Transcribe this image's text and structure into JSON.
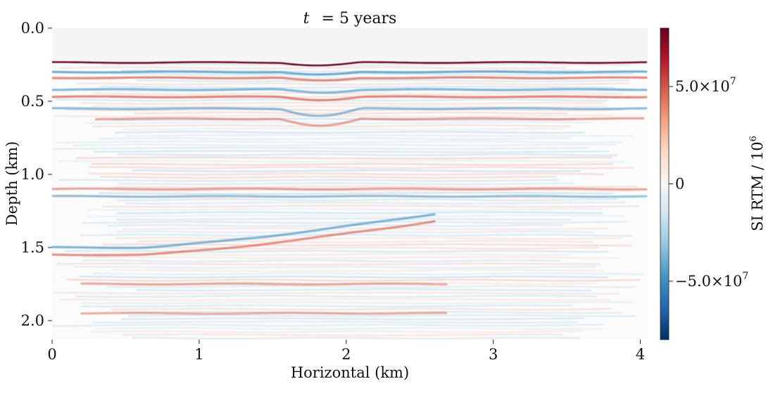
{
  "chart_data": {
    "type": "heatmap",
    "title_var": "t",
    "title_rest": "= 5 years",
    "xlabel": "Horizontal (km)",
    "ylabel": "Depth (km)",
    "xlim": [
      0,
      4.05
    ],
    "ylim": [
      0.0,
      2.13
    ],
    "x_ticks": [
      0,
      1,
      2,
      3,
      4
    ],
    "x_tick_labels": [
      "0",
      "1",
      "2",
      "3",
      "4"
    ],
    "y_ticks": [
      0.0,
      0.5,
      1.0,
      1.5,
      2.0
    ],
    "y_tick_labels": [
      "0.0",
      "0.5",
      "1.0",
      "1.5",
      "2.0"
    ],
    "y_inverted": true,
    "colorbar": {
      "label": "SI RTM / 10",
      "label_exponent": "6",
      "colormap": "RdBu_r",
      "range": [
        -80000000,
        80000000
      ],
      "ticks": [
        50000000,
        0,
        -50000000
      ],
      "tick_labels": [
        {
          "text": "5.0×10",
          "exp": "7"
        },
        {
          "text": "0",
          "exp": ""
        },
        {
          "text": "−5.0×10",
          "exp": "7"
        }
      ]
    },
    "water_bottom_depth_km": 0.23,
    "reflectors": [
      {
        "depth_km": 0.235,
        "x_from": 0.0,
        "x_to": 4.05,
        "amplitude": 0.95
      },
      {
        "depth_km": 0.3,
        "x_from": 0.0,
        "x_to": 4.05,
        "amplitude": -0.55
      },
      {
        "depth_km": 0.34,
        "x_from": 0.0,
        "x_to": 4.05,
        "amplitude": 0.5
      },
      {
        "depth_km": 0.42,
        "x_from": 0.0,
        "x_to": 4.05,
        "amplitude": -0.4
      },
      {
        "depth_km": 0.47,
        "x_from": 0.0,
        "x_to": 4.05,
        "amplitude": 0.55
      },
      {
        "depth_km": 0.55,
        "x_from": 0.0,
        "x_to": 4.05,
        "amplitude": -0.35
      },
      {
        "depth_km": 0.62,
        "x_from": 0.3,
        "x_to": 4.05,
        "amplitude": 0.3
      },
      {
        "depth_km": 1.1,
        "x_from": 0.0,
        "x_to": 4.05,
        "amplitude": 0.3
      },
      {
        "depth_km": 1.15,
        "x_from": 0.0,
        "x_to": 4.05,
        "amplitude": -0.25
      },
      {
        "depth_km": 1.5,
        "x_from": 0.0,
        "x_to": 2.6,
        "amplitude": -0.45
      },
      {
        "depth_km": 1.55,
        "x_from": 0.0,
        "x_to": 2.6,
        "amplitude": 0.45
      },
      {
        "depth_km": 1.75,
        "x_from": 0.2,
        "x_to": 2.7,
        "amplitude": 0.25
      },
      {
        "depth_km": 1.95,
        "x_from": 0.2,
        "x_to": 2.7,
        "amplitude": 0.2
      }
    ],
    "colors": {
      "background_top": "#f5f5f5",
      "positive_strong": "#67001f",
      "positive": "#d6604d",
      "neutral": "#f7f7f7",
      "negative": "#4393c3",
      "negative_strong": "#053061"
    }
  }
}
